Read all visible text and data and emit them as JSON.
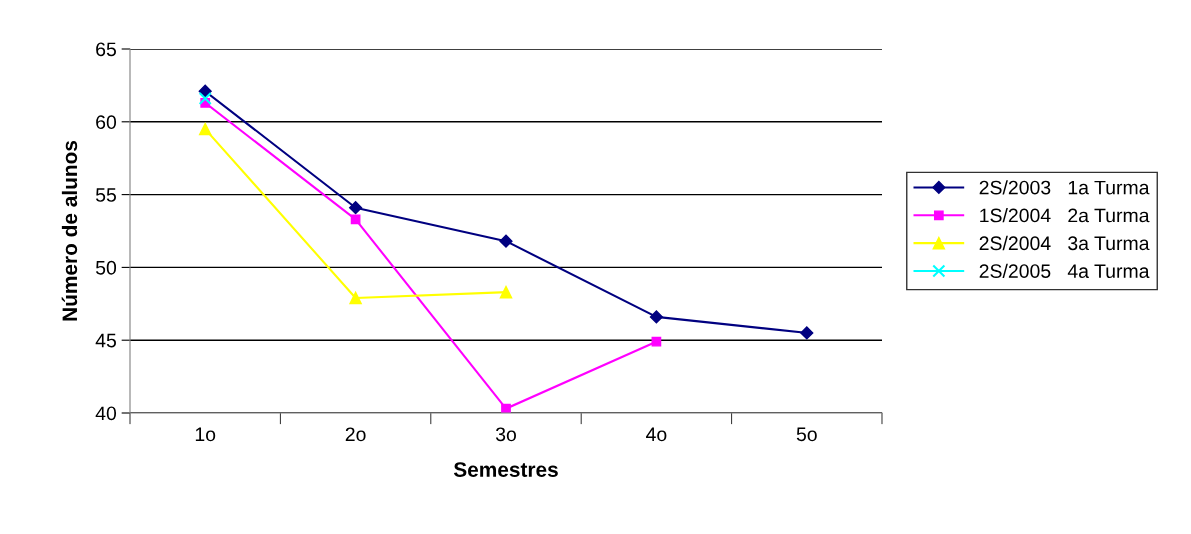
{
  "chart_data": {
    "type": "line",
    "xlabel": "Semestres",
    "ylabel": "Número de alunos",
    "categories": [
      "1o",
      "2o",
      "3o",
      "4o",
      "5o"
    ],
    "series": [
      {
        "name": "2S/2003   1a Turma",
        "color": "#000080",
        "marker": "diamond",
        "values": [
          62.1,
          54.1,
          51.8,
          46.6,
          45.5
        ]
      },
      {
        "name": "1S/2004   2a Turma",
        "color": "#ff00ff",
        "marker": "square",
        "values": [
          61.3,
          53.3,
          40.3,
          44.9,
          null
        ]
      },
      {
        "name": "2S/2004   3a Turma",
        "color": "#ffff00",
        "marker": "triangle",
        "values": [
          59.5,
          47.9,
          48.3,
          null,
          null
        ]
      },
      {
        "name": "2S/2005   4a Turma",
        "color": "#00ffff",
        "marker": "cross",
        "values": [
          61.6,
          null,
          null,
          null,
          null
        ]
      }
    ],
    "ylim": [
      40,
      65
    ],
    "yticks": [
      40,
      45,
      50,
      55,
      60,
      65
    ],
    "grid": "y",
    "legend": "right"
  }
}
